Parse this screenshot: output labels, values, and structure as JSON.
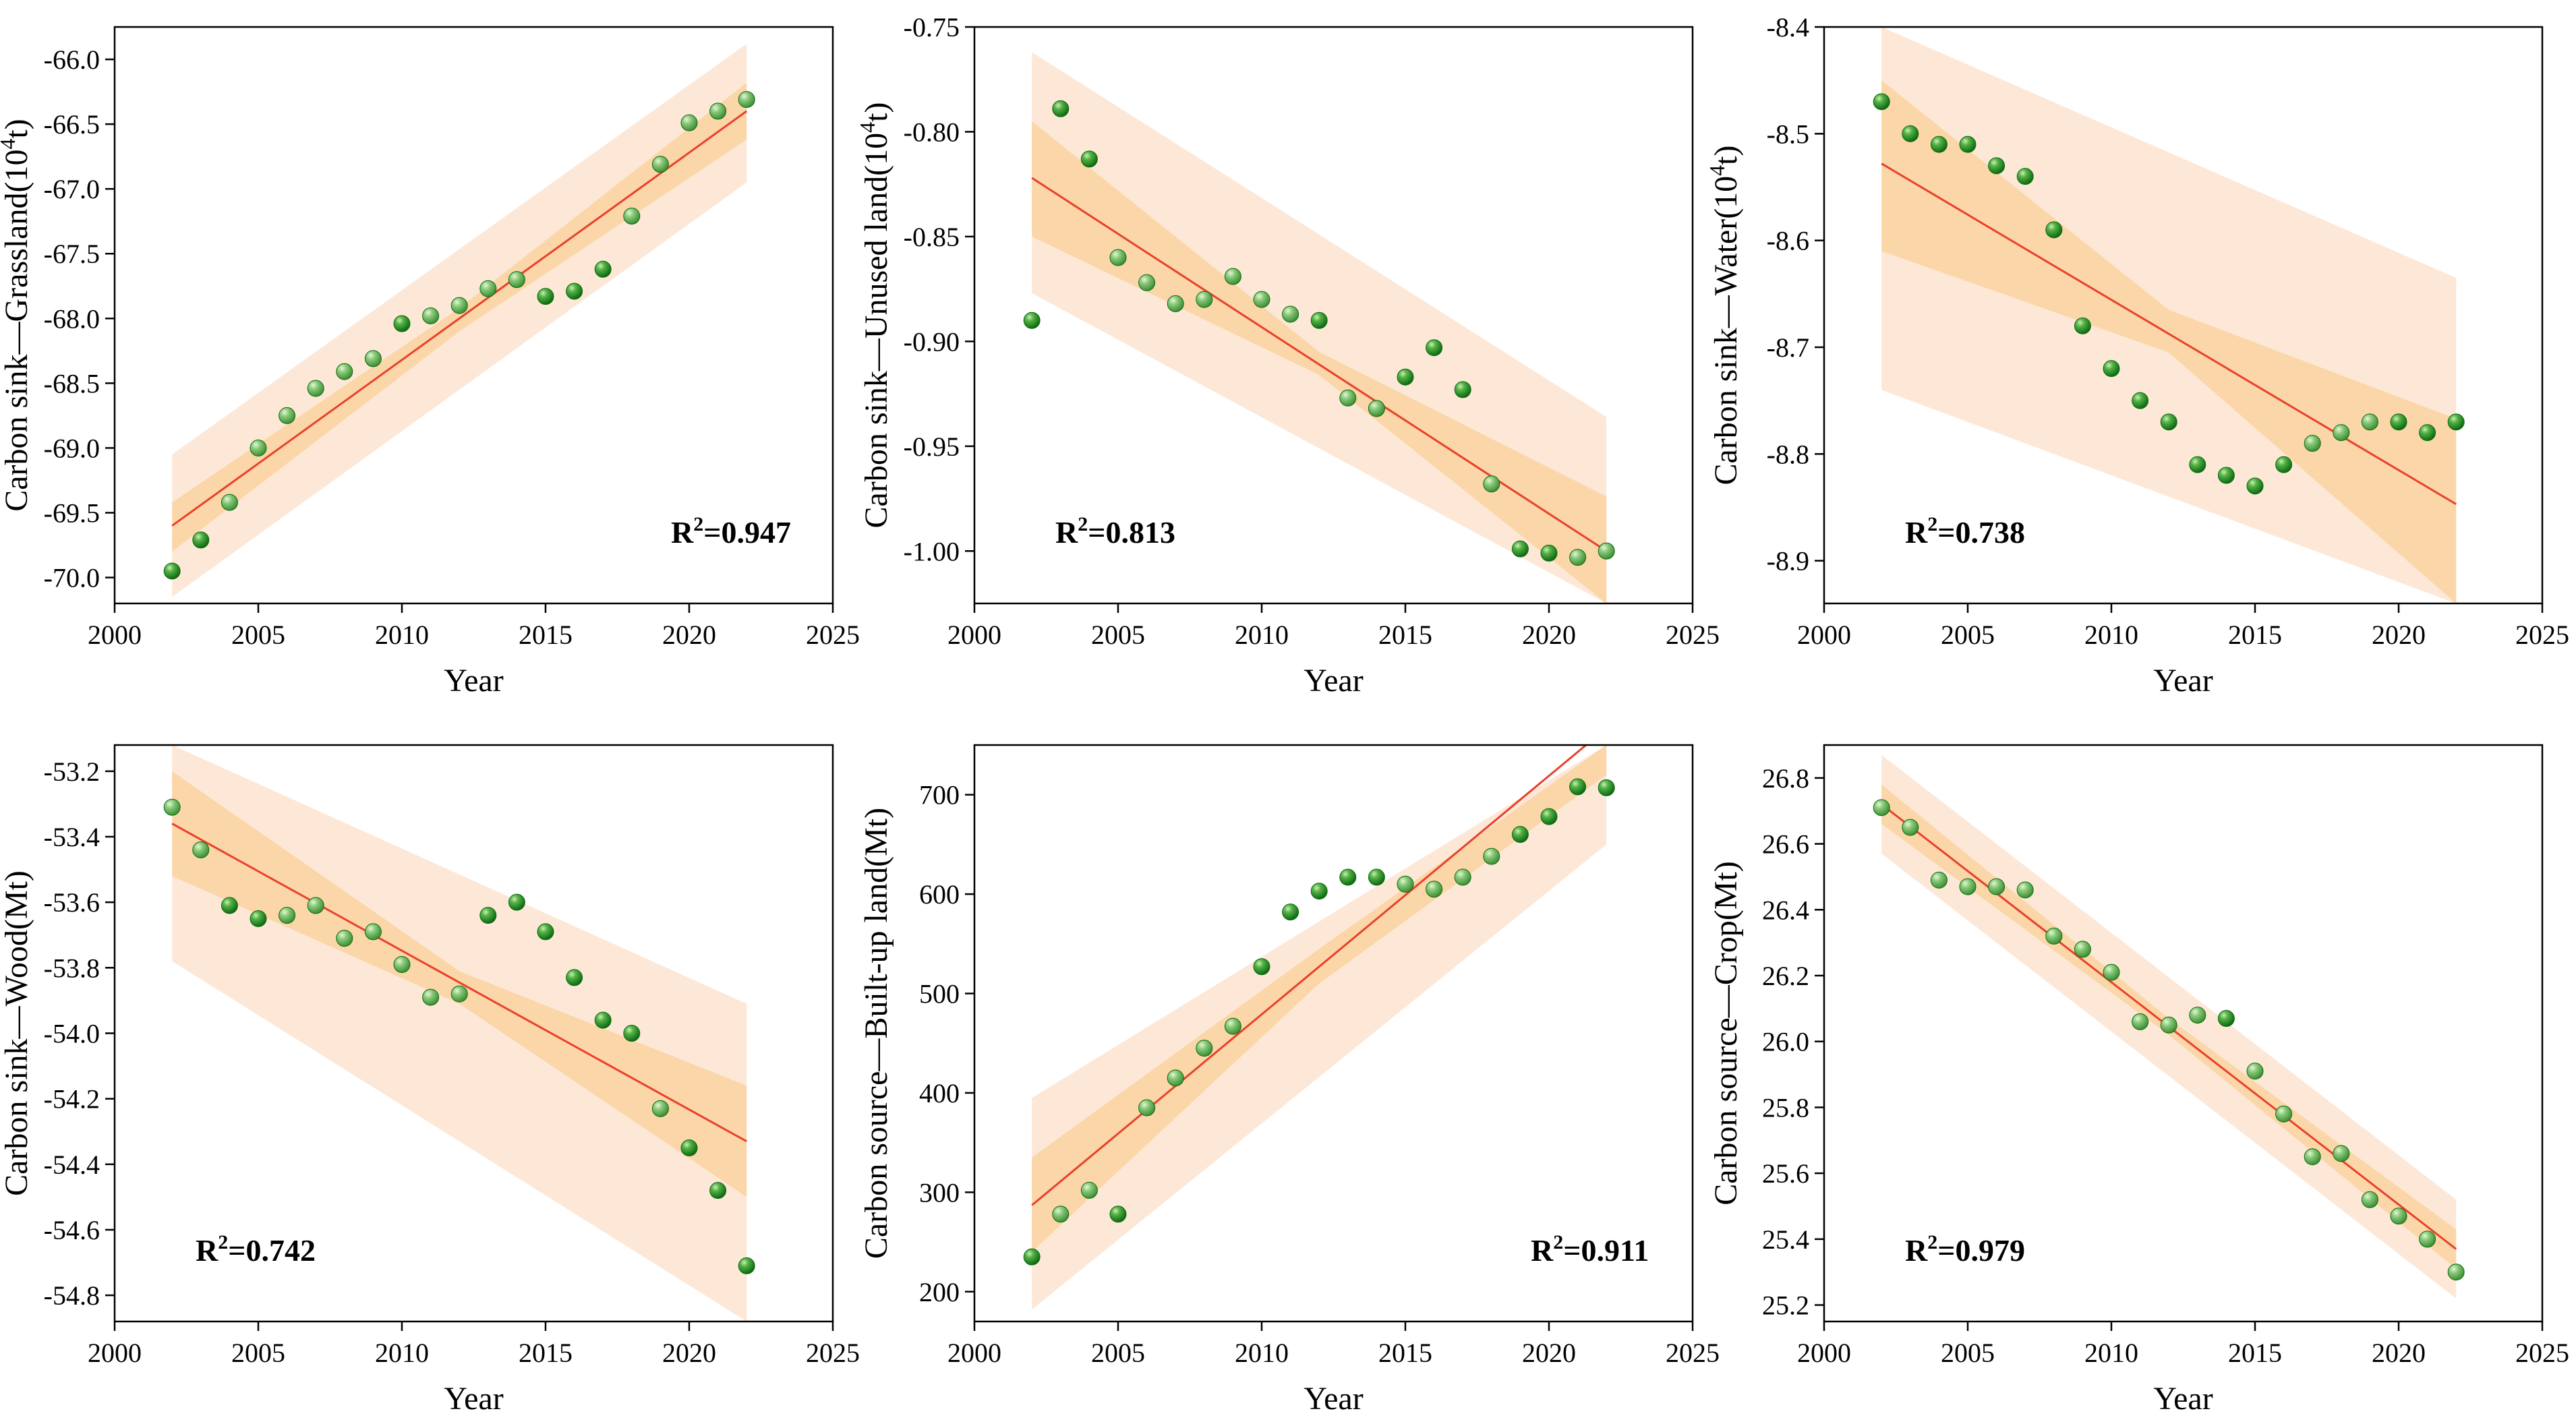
{
  "figure": {
    "colors": {
      "point_fill": "#2e9a2e",
      "point_fill_light": "#79c56a",
      "point_edge": "#0f6b12",
      "fit_line": "#e8412c",
      "prediction_band": "#fde8d8",
      "confidence_band": "#fbd6a8"
    }
  },
  "chart_data": [
    {
      "type": "scatter",
      "id": "grassland",
      "xlabel": "Year",
      "ylabel": {
        "main": "Carbon sink—Grassland(10",
        "sup": "4",
        "tail": "t)"
      },
      "r2": {
        "prefix": "R",
        "sup": "2",
        "value": "=0.947"
      },
      "r2_position": "bottom-right",
      "xlim": [
        2000,
        2025
      ],
      "ylim": [
        -70.2,
        -65.75
      ],
      "xticks": [
        2000,
        2005,
        2010,
        2015,
        2020,
        2025
      ],
      "xtick_labels": [
        "2000",
        "2005",
        "2010",
        "2015",
        "2020",
        "2025"
      ],
      "yticks": [
        -70.0,
        -69.5,
        -69.0,
        -68.5,
        -68.0,
        -67.5,
        -67.0,
        -66.5,
        -66.0
      ],
      "ytick_labels": [
        "-70.0",
        "-69.5",
        "-69.0",
        "-68.5",
        "-68.0",
        "-67.5",
        "-67.0",
        "-66.5",
        "-66.0"
      ],
      "x": [
        2002,
        2003,
        2004,
        2005,
        2006,
        2007,
        2008,
        2009,
        2010,
        2011,
        2012,
        2013,
        2014,
        2015,
        2016,
        2017,
        2018,
        2019,
        2020,
        2021,
        2022
      ],
      "y": [
        -69.95,
        -69.71,
        -69.42,
        -69.0,
        -68.75,
        -68.54,
        -68.41,
        -68.31,
        -68.04,
        -67.98,
        -67.9,
        -67.77,
        -67.7,
        -67.83,
        -67.79,
        -67.62,
        -67.21,
        -66.81,
        -66.49,
        -66.4,
        -66.31
      ],
      "fit": {
        "x": [
          2002,
          2022
        ],
        "y": [
          -69.6,
          -66.4
        ]
      },
      "confidence_band": {
        "x": [
          2002,
          2012,
          2022
        ],
        "upper": [
          -69.42,
          -67.92,
          -66.18
        ],
        "lower": [
          -69.8,
          -68.1,
          -66.62
        ]
      },
      "prediction_band": {
        "x": [
          2002,
          2022
        ],
        "upper": [
          -69.05,
          -65.88
        ],
        "lower": [
          -70.15,
          -66.95
        ]
      }
    },
    {
      "type": "scatter",
      "id": "unused-land",
      "xlabel": "Year",
      "ylabel": {
        "main": "Carbon sink—Unused land(10",
        "sup": "4",
        "tail": "t)"
      },
      "r2": {
        "prefix": "R",
        "sup": "2",
        "value": "=0.813"
      },
      "r2_position": "bottom-left",
      "xlim": [
        2000,
        2025
      ],
      "ylim": [
        -1.025,
        -0.75
      ],
      "xticks": [
        2000,
        2005,
        2010,
        2015,
        2020,
        2025
      ],
      "xtick_labels": [
        "2000",
        "2005",
        "2010",
        "2015",
        "2020",
        "2025"
      ],
      "yticks": [
        -1.0,
        -0.95,
        -0.9,
        -0.85,
        -0.8,
        -0.75
      ],
      "ytick_labels": [
        "-1.00",
        "-0.95",
        "-0.90",
        "-0.85",
        "-0.80",
        "-0.75"
      ],
      "x": [
        2002,
        2003,
        2004,
        2005,
        2006,
        2007,
        2008,
        2009,
        2010,
        2011,
        2012,
        2013,
        2014,
        2015,
        2016,
        2017,
        2018,
        2019,
        2020,
        2021,
        2022
      ],
      "y": [
        -0.89,
        -0.789,
        -0.813,
        -0.86,
        -0.872,
        -0.882,
        -0.88,
        -0.869,
        -0.88,
        -0.887,
        -0.89,
        -0.927,
        -0.932,
        -0.917,
        -0.903,
        -0.923,
        -0.968,
        -0.999,
        -1.001,
        -1.003,
        -1.0
      ],
      "fit": {
        "x": [
          2002,
          2022
        ],
        "y": [
          -0.822,
          -1.0
        ]
      },
      "confidence_band": {
        "x": [
          2002,
          2012,
          2022
        ],
        "upper": [
          -0.795,
          -0.905,
          -0.974
        ],
        "lower": [
          -0.85,
          -0.916,
          -1.025
        ]
      },
      "prediction_band": {
        "x": [
          2002,
          2022
        ],
        "upper": [
          -0.762,
          -0.936
        ],
        "lower": [
          -0.877,
          -1.025
        ]
      }
    },
    {
      "type": "scatter",
      "id": "water",
      "xlabel": "Year",
      "ylabel": {
        "main": "Carbon sink—Water(10",
        "sup": "4",
        "tail": "t)"
      },
      "r2": {
        "prefix": "R",
        "sup": "2",
        "value": "=0.738"
      },
      "r2_position": "bottom-left",
      "xlim": [
        2000,
        2025
      ],
      "ylim": [
        -8.94,
        -8.4
      ],
      "xticks": [
        2000,
        2005,
        2010,
        2015,
        2020,
        2025
      ],
      "xtick_labels": [
        "2000",
        "2005",
        "2010",
        "2015",
        "2020",
        "2025"
      ],
      "yticks": [
        -8.9,
        -8.8,
        -8.7,
        -8.6,
        -8.5,
        -8.4
      ],
      "ytick_labels": [
        "-8.9",
        "-8.8",
        "-8.7",
        "-8.6",
        "-8.5",
        "-8.4"
      ],
      "x": [
        2002,
        2003,
        2004,
        2005,
        2006,
        2007,
        2008,
        2009,
        2010,
        2011,
        2012,
        2013,
        2014,
        2015,
        2016,
        2017,
        2018,
        2019,
        2020,
        2021,
        2022
      ],
      "y": [
        -8.47,
        -8.5,
        -8.51,
        -8.51,
        -8.53,
        -8.54,
        -8.59,
        -8.68,
        -8.72,
        -8.75,
        -8.77,
        -8.81,
        -8.82,
        -8.83,
        -8.81,
        -8.79,
        -8.78,
        -8.77,
        -8.77,
        -8.78,
        -8.77
      ],
      "fit": {
        "x": [
          2002,
          2022
        ],
        "y": [
          -8.528,
          -8.847
        ]
      },
      "confidence_band": {
        "x": [
          2002,
          2012,
          2022
        ],
        "upper": [
          -8.45,
          -8.665,
          -8.767
        ],
        "lower": [
          -8.61,
          -8.705,
          -8.94
        ]
      },
      "prediction_band": {
        "x": [
          2002,
          2022
        ],
        "upper": [
          -8.4,
          -8.635
        ],
        "lower": [
          -8.74,
          -8.94
        ]
      }
    },
    {
      "type": "scatter",
      "id": "wood",
      "xlabel": "Year",
      "ylabel": {
        "main": "Carbon sink—Wood(Mt)"
      },
      "r2": {
        "prefix": "R",
        "sup": "2",
        "value": "=0.742"
      },
      "r2_position": "bottom-left",
      "xlim": [
        2000,
        2025
      ],
      "ylim": [
        -54.88,
        -53.12
      ],
      "xticks": [
        2000,
        2005,
        2010,
        2015,
        2020,
        2025
      ],
      "xtick_labels": [
        "2000",
        "2005",
        "2010",
        "2015",
        "2020",
        "2025"
      ],
      "yticks": [
        -54.8,
        -54.6,
        -54.4,
        -54.2,
        -54.0,
        -53.8,
        -53.6,
        -53.4,
        -53.2
      ],
      "ytick_labels": [
        "-54.8",
        "-54.6",
        "-54.4",
        "-54.2",
        "-54.0",
        "-53.8",
        "-53.6",
        "-53.4",
        "-53.2"
      ],
      "x": [
        2002,
        2003,
        2004,
        2005,
        2006,
        2007,
        2008,
        2009,
        2010,
        2011,
        2012,
        2013,
        2014,
        2015,
        2016,
        2017,
        2018,
        2019,
        2020,
        2021,
        2022
      ],
      "y": [
        -53.31,
        -53.44,
        -53.61,
        -53.65,
        -53.64,
        -53.61,
        -53.71,
        -53.69,
        -53.79,
        -53.89,
        -53.88,
        -53.64,
        -53.6,
        -53.69,
        -53.83,
        -53.96,
        -54.0,
        -54.23,
        -54.35,
        -54.48,
        -54.71
      ],
      "fit": {
        "x": [
          2002,
          2022
        ],
        "y": [
          -53.36,
          -54.33
        ]
      },
      "confidence_band": {
        "x": [
          2002,
          2012,
          2022
        ],
        "upper": [
          -53.2,
          -53.81,
          -54.16
        ],
        "lower": [
          -53.52,
          -53.91,
          -54.5
        ]
      },
      "prediction_band": {
        "x": [
          2002,
          2022
        ],
        "upper": [
          -53.12,
          -53.91
        ],
        "lower": [
          -53.78,
          -54.88
        ]
      }
    },
    {
      "type": "scatter",
      "id": "built-up-land",
      "xlabel": "Year",
      "ylabel": {
        "main": "Carbon source—Built-up land(Mt)"
      },
      "r2": {
        "prefix": "R",
        "sup": "2",
        "value": "=0.911"
      },
      "r2_position": "bottom-right",
      "xlim": [
        2000,
        2025
      ],
      "ylim": [
        170,
        750
      ],
      "xticks": [
        2000,
        2005,
        2010,
        2015,
        2020,
        2025
      ],
      "xtick_labels": [
        "2000",
        "2005",
        "2010",
        "2015",
        "2020",
        "2025"
      ],
      "yticks": [
        200,
        300,
        400,
        500,
        600,
        700
      ],
      "ytick_labels": [
        "200",
        "300",
        "400",
        "500",
        "600",
        "700"
      ],
      "x": [
        2002,
        2003,
        2004,
        2005,
        2006,
        2007,
        2008,
        2009,
        2010,
        2011,
        2012,
        2013,
        2014,
        2015,
        2016,
        2017,
        2018,
        2019,
        2020,
        2021,
        2022
      ],
      "y": [
        235,
        278,
        302,
        278,
        385,
        415,
        445,
        467,
        527,
        582,
        603,
        617,
        617,
        610,
        605,
        617,
        638,
        660,
        678,
        708,
        707
      ],
      "fit": {
        "x": [
          2002,
          2022
        ],
        "y": [
          287,
          767
        ]
      },
      "confidence_band": {
        "x": [
          2002,
          2012,
          2022
        ],
        "upper": [
          335,
          545,
          750
        ],
        "lower": [
          240,
          510,
          720
        ]
      },
      "prediction_band": {
        "x": [
          2002,
          2022
        ],
        "upper": [
          395,
          750
        ],
        "lower": [
          182,
          650
        ]
      }
    },
    {
      "type": "scatter",
      "id": "crop",
      "xlabel": "Year",
      "ylabel": {
        "main": "Carbon source—Crop(Mt)"
      },
      "r2": {
        "prefix": "R",
        "sup": "2",
        "value": "=0.979"
      },
      "r2_position": "bottom-left",
      "xlim": [
        2000,
        2025
      ],
      "ylim": [
        25.15,
        26.9
      ],
      "xticks": [
        2000,
        2005,
        2010,
        2015,
        2020,
        2025
      ],
      "xtick_labels": [
        "2000",
        "2005",
        "2010",
        "2015",
        "2020",
        "2025"
      ],
      "yticks": [
        25.2,
        25.4,
        25.6,
        25.8,
        26.0,
        26.2,
        26.4,
        26.6,
        26.8
      ],
      "ytick_labels": [
        "25.2",
        "25.4",
        "25.6",
        "25.8",
        "26.0",
        "26.2",
        "26.4",
        "26.6",
        "26.8"
      ],
      "x": [
        2002,
        2003,
        2004,
        2005,
        2006,
        2007,
        2008,
        2009,
        2010,
        2011,
        2012,
        2013,
        2014,
        2015,
        2016,
        2017,
        2018,
        2019,
        2020,
        2021,
        2022
      ],
      "y": [
        26.71,
        26.65,
        26.49,
        26.47,
        26.47,
        26.46,
        26.32,
        26.28,
        26.21,
        26.06,
        26.05,
        26.08,
        26.07,
        25.91,
        25.78,
        25.65,
        25.66,
        25.52,
        25.47,
        25.4,
        25.3
      ],
      "fit": {
        "x": [
          2002,
          2022
        ],
        "y": [
          26.72,
          25.37
        ]
      },
      "confidence_band": {
        "x": [
          2002,
          2012,
          2022
        ],
        "upper": [
          26.78,
          26.07,
          25.43
        ],
        "lower": [
          26.66,
          26.02,
          25.31
        ]
      },
      "prediction_band": {
        "x": [
          2002,
          2022
        ],
        "upper": [
          26.87,
          25.52
        ],
        "lower": [
          26.57,
          25.22
        ]
      }
    }
  ]
}
